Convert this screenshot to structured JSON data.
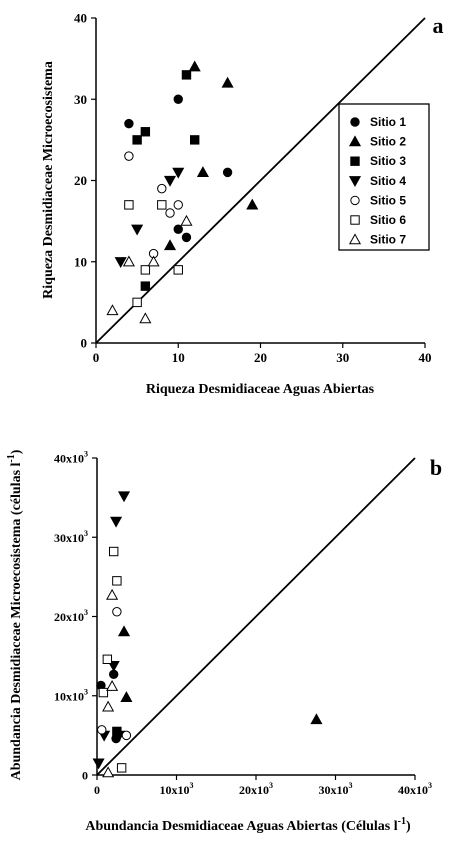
{
  "chart_data": [
    {
      "type": "scatter",
      "panel_label": "a",
      "title": "",
      "xlabel": "Riqueza Desmidiaceae Aguas Abiertas",
      "ylabel": "Riqueza Desmidiaceae Microecosistema",
      "xlim": [
        0,
        40
      ],
      "ylim": [
        0,
        40
      ],
      "x_ticks": [
        "0",
        "10",
        "20",
        "30",
        "40"
      ],
      "y_ticks": [
        "0",
        "10",
        "20",
        "30",
        "40"
      ],
      "grid": false,
      "legend_position": "right",
      "reference_line": "1:1",
      "series": [
        {
          "name": "Sitio 1",
          "marker": "circle-filled",
          "points": [
            [
              4,
              27
            ],
            [
              10,
              30
            ],
            [
              16,
              21
            ],
            [
              10,
              14
            ],
            [
              11,
              13
            ]
          ]
        },
        {
          "name": "Sitio 2",
          "marker": "triangle-up-filled",
          "points": [
            [
              12,
              34
            ],
            [
              16,
              32
            ],
            [
              13,
              21
            ],
            [
              19,
              17
            ],
            [
              9,
              12
            ]
          ]
        },
        {
          "name": "Sitio 3",
          "marker": "square-filled",
          "points": [
            [
              11,
              33
            ],
            [
              6,
              26
            ],
            [
              5,
              25
            ],
            [
              12,
              25
            ],
            [
              6,
              7
            ]
          ]
        },
        {
          "name": "Sitio 4",
          "marker": "triangle-down-filled",
          "points": [
            [
              10,
              21
            ],
            [
              9,
              20
            ],
            [
              5,
              14
            ],
            [
              3,
              10
            ]
          ]
        },
        {
          "name": "Sitio 5",
          "marker": "circle-open",
          "points": [
            [
              4,
              23
            ],
            [
              8,
              19
            ],
            [
              10,
              17
            ],
            [
              9,
              16
            ],
            [
              7,
              11
            ]
          ]
        },
        {
          "name": "Sitio 6",
          "marker": "square-open",
          "points": [
            [
              4,
              17
            ],
            [
              8,
              17
            ],
            [
              6,
              9
            ],
            [
              10,
              9
            ],
            [
              5,
              5
            ]
          ]
        },
        {
          "name": "Sitio 7",
          "marker": "triangle-up-open",
          "points": [
            [
              11,
              15
            ],
            [
              4,
              10
            ],
            [
              7,
              10
            ],
            [
              2,
              4
            ],
            [
              6,
              3
            ]
          ]
        }
      ]
    },
    {
      "type": "scatter",
      "panel_label": "b",
      "title": "",
      "xlabel": "Abundancia Desmidiaceae Aguas Abiertas (Células l",
      "xlabel_sup": "-1",
      "xlabel_end": ")",
      "ylabel": "Abundancia Desmidiaceae Microecosistema (células l",
      "ylabel_sup": "-1",
      "ylabel_end": ")",
      "xlim": [
        0,
        40000
      ],
      "ylim": [
        0,
        40000
      ],
      "x_ticks": [
        "0",
        "10x10",
        "20x10",
        "30x10",
        "40x10"
      ],
      "y_ticks": [
        "0",
        "10x10",
        "20x10",
        "30x10",
        "40x10"
      ],
      "tick_exponent": "3",
      "grid": false,
      "reference_line": "1:1",
      "series": [
        {
          "name": "Sitio 1",
          "marker": "circle-filled",
          "points": [
            [
              500,
              11300
            ],
            [
              2100,
              12700
            ],
            [
              2400,
              4600
            ]
          ]
        },
        {
          "name": "Sitio 2",
          "marker": "triangle-up-filled",
          "points": [
            [
              3400,
              18100
            ],
            [
              3700,
              9800
            ],
            [
              27600,
              7000
            ]
          ]
        },
        {
          "name": "Sitio 3",
          "marker": "square-filled",
          "points": [
            [
              2500,
              5500
            ]
          ]
        },
        {
          "name": "Sitio 4",
          "marker": "triangle-down-filled",
          "points": [
            [
              3400,
              35200
            ],
            [
              2400,
              32000
            ],
            [
              2100,
              13800
            ],
            [
              900,
              5000
            ],
            [
              2800,
              5000
            ],
            [
              200,
              1500
            ]
          ]
        },
        {
          "name": "Sitio 5",
          "marker": "circle-open",
          "points": [
            [
              2500,
              20600
            ],
            [
              600,
              5700
            ],
            [
              3700,
              5000
            ]
          ]
        },
        {
          "name": "Sitio 6",
          "marker": "square-open",
          "points": [
            [
              2100,
              28200
            ],
            [
              2500,
              24500
            ],
            [
              1300,
              14600
            ],
            [
              800,
              10400
            ],
            [
              3100,
              900
            ]
          ]
        },
        {
          "name": "Sitio 7",
          "marker": "triangle-up-open",
          "points": [
            [
              1900,
              22700
            ],
            [
              1900,
              11200
            ],
            [
              1400,
              8600
            ],
            [
              1400,
              300
            ]
          ]
        }
      ]
    }
  ]
}
